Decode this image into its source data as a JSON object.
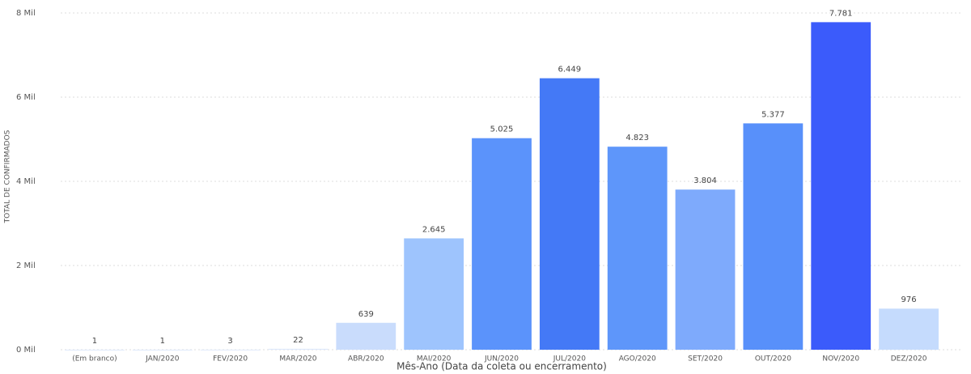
{
  "chart_data": {
    "type": "bar",
    "y_axis_label": "TOTAL DE CONFIRMADOS",
    "x_axis_label": "Mês-Ano (Data da coleta ou encerramento)",
    "categories": [
      "(Em branco)",
      "JAN/2020",
      "FEV/2020",
      "MAR/2020",
      "ABR/2020",
      "MAI/2020",
      "JUN/2020",
      "JUL/2020",
      "AGO/2020",
      "SET/2020",
      "OUT/2020",
      "NOV/2020",
      "DEZ/2020"
    ],
    "values": [
      1,
      1,
      3,
      22,
      639,
      2645,
      5025,
      6449,
      4823,
      3804,
      5377,
      7781,
      976
    ],
    "value_labels": [
      "1",
      "1",
      "3",
      "22",
      "639",
      "2.645",
      "5.025",
      "6.449",
      "4.823",
      "3.804",
      "5.377",
      "7.781",
      "976"
    ],
    "colors": [
      "#dfe9fb",
      "#dfe9fb",
      "#dfe9fb",
      "#dde8fb",
      "#c9dcfc",
      "#9ec4fd",
      "#5b93fb",
      "#4479f6",
      "#5e96fa",
      "#7eaafc",
      "#5890fa",
      "#3b5bfb",
      "#c5dbfd"
    ],
    "ylim": [
      0,
      8000
    ],
    "yticks": [
      {
        "value": 0,
        "label": "0 Mil"
      },
      {
        "value": 2000,
        "label": "2 Mil"
      },
      {
        "value": 4000,
        "label": "4 Mil"
      },
      {
        "value": 6000,
        "label": "6 Mil"
      },
      {
        "value": 8000,
        "label": "8 Mil"
      }
    ],
    "grid": true
  }
}
